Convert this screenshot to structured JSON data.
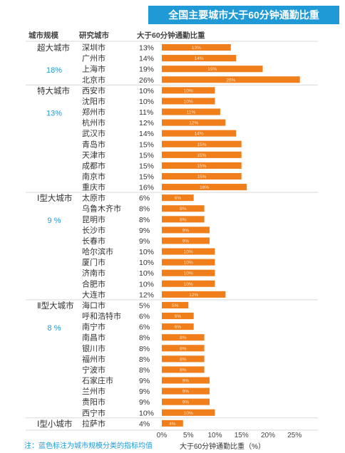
{
  "title": "全国主要城市大于60分钟通勤比重",
  "headers": {
    "scale": "城市规模",
    "city": "研究城市",
    "value": "大于60分钟通勤比重"
  },
  "footnote": "注：蓝色标注为城市规模分类的指标均值",
  "colors": {
    "bar": "#f07e1a",
    "accent": "#1f9ad6",
    "rule": "#d9d9d9"
  },
  "chart_data": {
    "type": "bar",
    "orientation": "horizontal",
    "xlabel": "大于60分钟通勤比重（%）",
    "xlim": [
      0,
      30
    ],
    "xticks": [
      0,
      5,
      10,
      15,
      20,
      25
    ],
    "xtick_labels": [
      "0%",
      "5%",
      "10%",
      "15%",
      "20%",
      "25%"
    ],
    "groups": [
      {
        "name": "超大城市",
        "mean_label": "18%",
        "cities": [
          {
            "city": "深圳市",
            "value": 13
          },
          {
            "city": "广州市",
            "value": 14
          },
          {
            "city": "上海市",
            "value": 19
          },
          {
            "city": "北京市",
            "value": 26
          }
        ]
      },
      {
        "name": "特大城市",
        "mean_label": "13%",
        "cities": [
          {
            "city": "西安市",
            "value": 10
          },
          {
            "city": "沈阳市",
            "value": 10
          },
          {
            "city": "郑州市",
            "value": 11
          },
          {
            "city": "杭州市",
            "value": 12
          },
          {
            "city": "武汉市",
            "value": 14
          },
          {
            "city": "青岛市",
            "value": 15
          },
          {
            "city": "天津市",
            "value": 15
          },
          {
            "city": "成都市",
            "value": 15
          },
          {
            "city": "南京市",
            "value": 15
          },
          {
            "city": "重庆市",
            "value": 16
          }
        ]
      },
      {
        "name": "Ⅰ型大城市",
        "mean_label": "9 %",
        "cities": [
          {
            "city": "太原市",
            "value": 6
          },
          {
            "city": "乌鲁木齐市",
            "value": 8
          },
          {
            "city": "昆明市",
            "value": 8
          },
          {
            "city": "长沙市",
            "value": 9
          },
          {
            "city": "长春市",
            "value": 9
          },
          {
            "city": "哈尔滨市",
            "value": 10
          },
          {
            "city": "厦门市",
            "value": 10
          },
          {
            "city": "济南市",
            "value": 10
          },
          {
            "city": "合肥市",
            "value": 10
          },
          {
            "city": "大连市",
            "value": 12
          }
        ]
      },
      {
        "name": "Ⅱ型大城市",
        "mean_label": "8 %",
        "cities": [
          {
            "city": "海口市",
            "value": 5
          },
          {
            "city": "呼和浩特市",
            "value": 6
          },
          {
            "city": "南宁市",
            "value": 6
          },
          {
            "city": "南昌市",
            "value": 8
          },
          {
            "city": "银川市",
            "value": 8
          },
          {
            "city": "福州市",
            "value": 8
          },
          {
            "city": "宁波市",
            "value": 8
          },
          {
            "city": "石家庄市",
            "value": 9
          },
          {
            "city": "兰州市",
            "value": 9
          },
          {
            "city": "贵阳市",
            "value": 9
          },
          {
            "city": "西宁市",
            "value": 10
          }
        ]
      },
      {
        "name": "Ⅰ型小城市",
        "mean_label": "",
        "cities": [
          {
            "city": "拉萨市",
            "value": 4
          }
        ]
      }
    ]
  }
}
